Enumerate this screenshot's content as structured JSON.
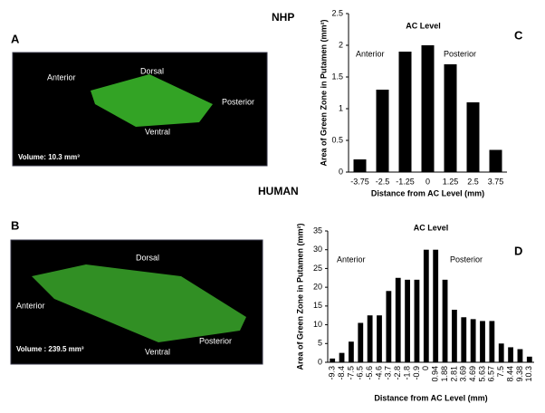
{
  "headers": {
    "nhp": "NHP",
    "human": "HUMAN"
  },
  "panels": {
    "a": "A",
    "b": "B",
    "c": "C",
    "d": "D"
  },
  "image_a": {
    "anterior": "Anterior",
    "dorsal": "Dorsal",
    "posterior": "Posterior",
    "ventral": "Ventral",
    "volume": "Volume: 10.3 mm³"
  },
  "image_b": {
    "anterior": "Anterior",
    "dorsal": "Dorsal",
    "posterior": "Posterior",
    "ventral": "Ventral",
    "volume": "Volume : 239.5 mm³"
  },
  "chart_data": [
    {
      "type": "bar",
      "annotation": "AC Level",
      "anterior": "Anterior",
      "posterior": "Posterior",
      "x_label": "Distance from AC Level (mm)",
      "y_label": "Area of Green Zone in Putamen (mm²)",
      "categories": [
        "-3.75",
        "-2.5",
        "-1.25",
        "0",
        "1.25",
        "2.5",
        "3.75"
      ],
      "values": [
        0.2,
        1.3,
        1.9,
        2.0,
        1.7,
        1.1,
        0.35
      ],
      "color": "#000000",
      "ylim": [
        0,
        2.5
      ],
      "yticks": [
        0,
        0.5,
        1,
        1.5,
        2,
        2.5
      ]
    },
    {
      "type": "bar",
      "annotation": "AC Level",
      "anterior": "Anterior",
      "posterior": "Posterior",
      "x_label": "Distance from AC Level (mm)",
      "y_label": "Area of Green Zone in Putamen (mm²)",
      "categories": [
        "-9.3",
        "-8.4",
        "-7.5",
        "-6.5",
        "-5.6",
        "-4.6",
        "-3.7",
        "-2.8",
        "-1.8",
        "-0.9",
        "0",
        "0.94",
        "1.88",
        "2.81",
        "3.69",
        "4.69",
        "5.63",
        "6.57",
        "7.5",
        "8.44",
        "9.38",
        "10.3"
      ],
      "values": [
        1,
        2.5,
        5.5,
        10.5,
        12.5,
        12.5,
        19,
        22.5,
        22,
        22,
        30,
        30,
        22,
        14,
        12,
        11.5,
        11,
        11,
        5,
        4,
        3.5,
        1.5
      ],
      "color": "#000000",
      "ylim": [
        0,
        35
      ],
      "yticks": [
        0,
        5,
        10,
        15,
        20,
        25,
        30,
        35
      ]
    }
  ]
}
